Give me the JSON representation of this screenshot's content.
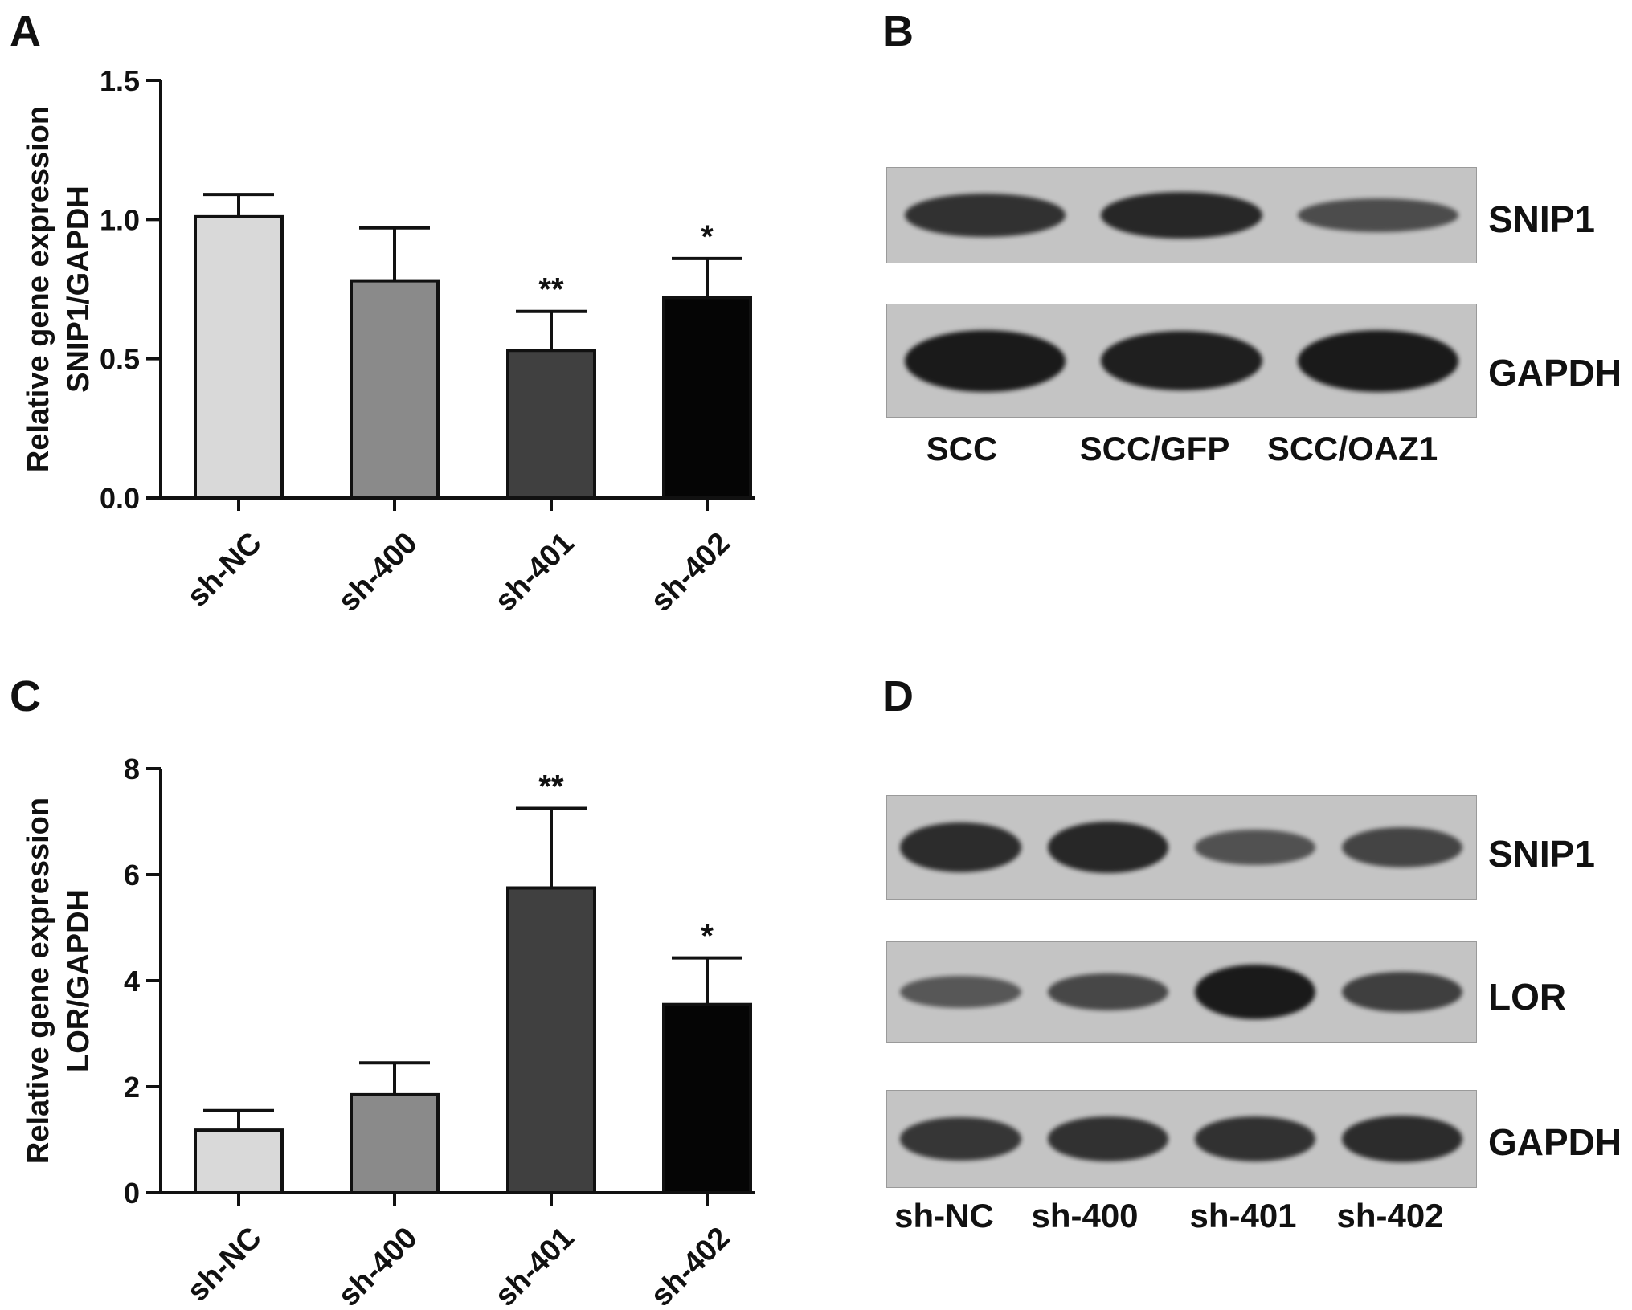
{
  "panels": {
    "A": {
      "letter": "A"
    },
    "B": {
      "letter": "B"
    },
    "C": {
      "letter": "C"
    },
    "D": {
      "letter": "D"
    }
  },
  "colors": {
    "sh-NC": "#d9d9d9",
    "sh-400": "#8a8a8a",
    "sh-401": "#404040",
    "sh-402": "#050505",
    "blot_bg": "#c4c4c4",
    "band": "#1a1a1a"
  },
  "chart_data": [
    {
      "id": "A",
      "type": "bar",
      "categories": [
        "sh-NC",
        "sh-400",
        "sh-401",
        "sh-402"
      ],
      "values": [
        1.01,
        0.78,
        0.53,
        0.72
      ],
      "errors": [
        0.08,
        0.19,
        0.14,
        0.14
      ],
      "significance": [
        "",
        "",
        "**",
        "*"
      ],
      "ylabel_line1": "Relative gene expression",
      "ylabel_line2": "SNIP1/GAPDH",
      "ylim": [
        0,
        1.5
      ],
      "yticks": [
        0.0,
        0.5,
        1.0,
        1.5
      ],
      "ytick_labels": [
        "0.0",
        "0.5",
        "1.0",
        "1.5"
      ]
    },
    {
      "id": "C",
      "type": "bar",
      "categories": [
        "sh-NC",
        "sh-400",
        "sh-401",
        "sh-402"
      ],
      "values": [
        1.18,
        1.85,
        5.75,
        3.55
      ],
      "errors": [
        0.37,
        0.6,
        1.5,
        0.88
      ],
      "significance": [
        "",
        "",
        "**",
        "*"
      ],
      "ylabel_line1": "Relative gene expression",
      "ylabel_line2": "LOR/GAPDH",
      "ylim": [
        0,
        8
      ],
      "yticks": [
        0,
        2,
        4,
        6,
        8
      ],
      "ytick_labels": [
        "0",
        "2",
        "4",
        "6",
        "8"
      ]
    }
  ],
  "blots": {
    "B": {
      "rows": [
        {
          "label": "SNIP1",
          "intensity": [
            0.75,
            0.85,
            0.45
          ]
        },
        {
          "label": "GAPDH",
          "intensity": [
            1.0,
            0.95,
            1.0
          ]
        }
      ],
      "lanes": [
        "SCC",
        "SCC/GFP",
        "SCC/OAZ1"
      ]
    },
    "D": {
      "rows": [
        {
          "label": "SNIP1",
          "intensity": [
            0.8,
            0.85,
            0.4,
            0.55
          ]
        },
        {
          "label": "LOR",
          "intensity": [
            0.35,
            0.5,
            1.0,
            0.6
          ]
        },
        {
          "label": "GAPDH",
          "intensity": [
            0.7,
            0.75,
            0.75,
            0.8
          ]
        }
      ],
      "lanes": [
        "sh-NC",
        "sh-400",
        "sh-401",
        "sh-402"
      ]
    }
  }
}
